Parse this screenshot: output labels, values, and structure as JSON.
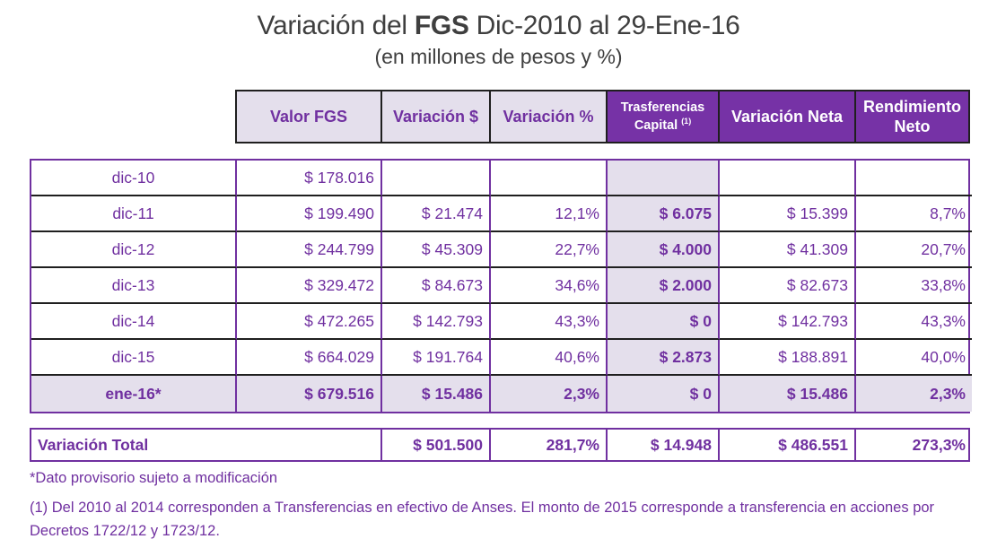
{
  "title": {
    "part1": "Variación del ",
    "part2": "FGS",
    "part3": " Dic-2010 al 29-Ene-16"
  },
  "subtitle": "(en millones de pesos y %)",
  "colors": {
    "accent_purple": "#7030A0",
    "header_dark_background": "#7632A6",
    "light_lavender": "#E4DFEC",
    "title_gray": "#3F3F3F"
  },
  "table": {
    "header": {
      "valor": "Valor FGS",
      "var_pesos": "Variación $",
      "var_pct": "Variación %",
      "transf": "Trasferencias Capital",
      "transf_sup": "(1)",
      "var_neta": "Variación Neta",
      "rend": "Rendimiento Neto"
    },
    "rows": [
      {
        "label": "dic-10",
        "valor": "$ 178.016",
        "var_pesos": "",
        "var_pct": "",
        "transf": "",
        "var_neta": "",
        "rend": ""
      },
      {
        "label": "dic-11",
        "valor": "$ 199.490",
        "var_pesos": "$ 21.474",
        "var_pct": "12,1%",
        "transf": "$ 6.075",
        "var_neta": "$ 15.399",
        "rend": "8,7%"
      },
      {
        "label": "dic-12",
        "valor": "$ 244.799",
        "var_pesos": "$ 45.309",
        "var_pct": "22,7%",
        "transf": "$ 4.000",
        "var_neta": "$ 41.309",
        "rend": "20,7%"
      },
      {
        "label": "dic-13",
        "valor": "$ 329.472",
        "var_pesos": "$ 84.673",
        "var_pct": "34,6%",
        "transf": "$ 2.000",
        "var_neta": "$ 82.673",
        "rend": "33,8%"
      },
      {
        "label": "dic-14",
        "valor": "$ 472.265",
        "var_pesos": "$ 142.793",
        "var_pct": "43,3%",
        "transf": "$ 0",
        "var_neta": "$ 142.793",
        "rend": "43,3%"
      },
      {
        "label": "dic-15",
        "valor": "$ 664.029",
        "var_pesos": "$ 191.764",
        "var_pct": "40,6%",
        "transf": "$ 2.873",
        "var_neta": "$ 188.891",
        "rend": "40,0%"
      },
      {
        "label": "ene-16*",
        "valor": "$ 679.516",
        "var_pesos": "$ 15.486",
        "var_pct": "2,3%",
        "transf": "$ 0",
        "var_neta": "$ 15.486",
        "rend": "2,3%"
      }
    ],
    "total": {
      "label": "Variación Total",
      "var_pesos": "$ 501.500",
      "var_pct": "281,7%",
      "transf": "$ 14.948",
      "var_neta": "$ 486.551",
      "rend": "273,3%"
    }
  },
  "footnotes": {
    "provisional": "*Dato provisorio sujeto a modificación",
    "transfers": "(1) Del 2010 al 2014 corresponden a Transferencias en efectivo de Anses. El monto de 2015 corresponde a transferencia en acciones por Decretos 1722/12 y 1723/12."
  }
}
